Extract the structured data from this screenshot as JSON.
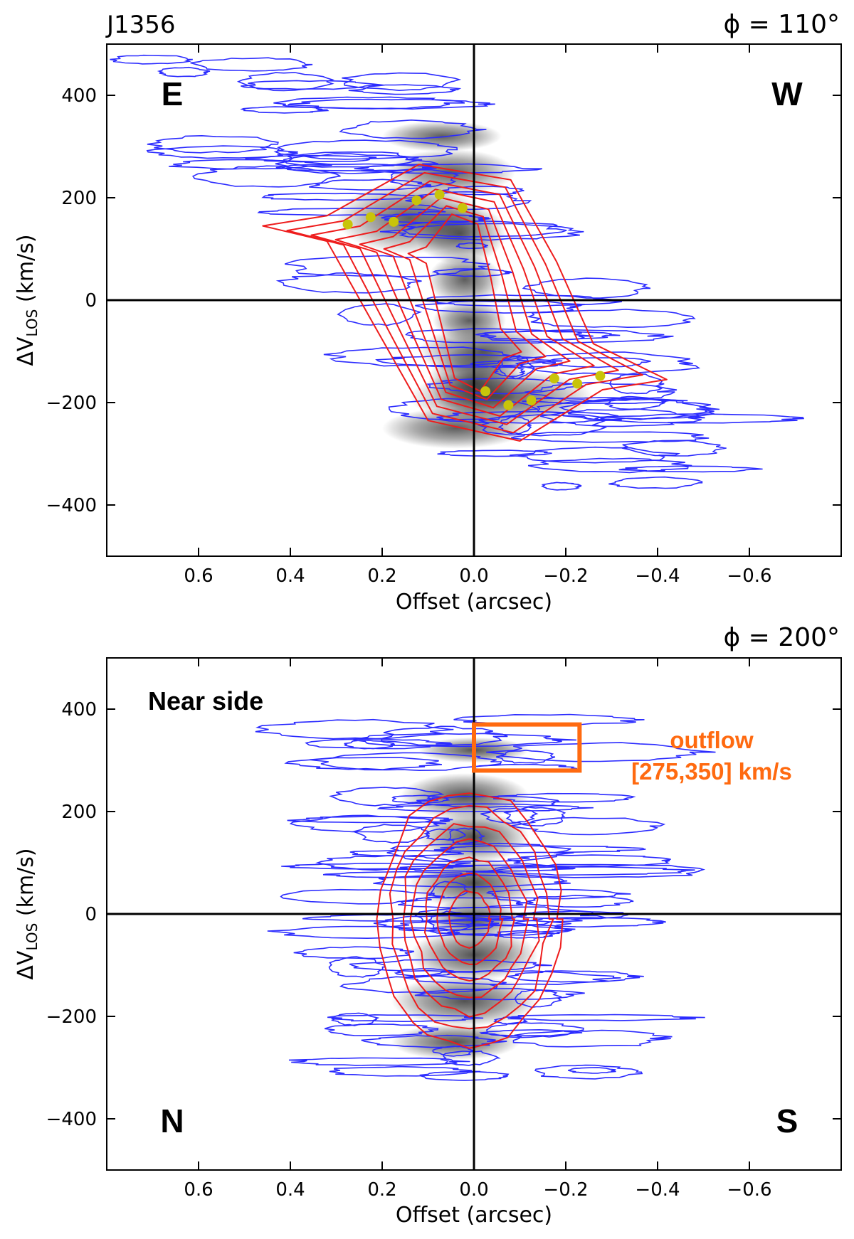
{
  "figure": {
    "title": "J1356",
    "colors": {
      "moment": "#2b2bff",
      "model": "#ee1c1c",
      "trace": "#c8c40a",
      "annot": "#ff6a10",
      "axes": "#000000"
    }
  },
  "chart_data": [
    {
      "type": "position-velocity diagram",
      "panel": "top",
      "angle_label": "ϕ = 110°",
      "xlabel": "Offset (arcsec)",
      "ylabel": "ΔV_LOS (km/s)",
      "ylabel_main": "ΔV",
      "ylabel_sub": "LOS",
      "ylabel_unit": " (km/s)",
      "xlim": [
        0.8,
        -0.8
      ],
      "ylim": [
        -500,
        500
      ],
      "xticks": [
        0.6,
        0.4,
        0.2,
        0.0,
        -0.2,
        -0.4,
        -0.6
      ],
      "xtick_labels": [
        "0.6",
        "0.4",
        "0.2",
        "0.0",
        "−0.2",
        "−0.4",
        "−0.6"
      ],
      "yticks": [
        400,
        200,
        0,
        -200,
        -400
      ],
      "ytick_labels": [
        "400",
        "200",
        "0",
        "−200",
        "−400"
      ],
      "corner_labels": [
        "E",
        "W"
      ],
      "rotation_curve_points": [
        {
          "offset": 0.275,
          "v": 148
        },
        {
          "offset": 0.225,
          "v": 162
        },
        {
          "offset": 0.175,
          "v": 153
        },
        {
          "offset": 0.125,
          "v": 195
        },
        {
          "offset": 0.075,
          "v": 206
        },
        {
          "offset": 0.025,
          "v": 180
        },
        {
          "offset": -0.025,
          "v": -178
        },
        {
          "offset": -0.075,
          "v": -205
        },
        {
          "offset": -0.125,
          "v": -196
        },
        {
          "offset": -0.175,
          "v": -153
        },
        {
          "offset": -0.225,
          "v": -163
        },
        {
          "offset": -0.275,
          "v": -148
        }
      ]
    },
    {
      "type": "position-velocity diagram",
      "panel": "bottom",
      "angle_label": "ϕ = 200°",
      "xlabel": "Offset (arcsec)",
      "ylabel": "ΔV_LOS (km/s)",
      "ylabel_main": "ΔV",
      "ylabel_sub": "LOS",
      "ylabel_unit": " (km/s)",
      "xlim": [
        0.8,
        -0.8
      ],
      "ylim": [
        -500,
        500
      ],
      "xticks": [
        0.6,
        0.4,
        0.2,
        0.0,
        -0.2,
        -0.4,
        -0.6
      ],
      "xtick_labels": [
        "0.6",
        "0.4",
        "0.2",
        "0.0",
        "−0.2",
        "−0.4",
        "−0.6"
      ],
      "yticks": [
        400,
        200,
        0,
        -200,
        -400
      ],
      "ytick_labels": [
        "400",
        "200",
        "0",
        "−200",
        "−400"
      ],
      "top_label": "Near side",
      "corner_labels": [
        "N",
        "S"
      ],
      "outflow_box": {
        "offset_range": [
          0.0,
          -0.23
        ],
        "v_range": [
          280,
          370
        ]
      },
      "outflow_label_line1": "outflow",
      "outflow_label_line2": "[275,350] km/s"
    }
  ]
}
